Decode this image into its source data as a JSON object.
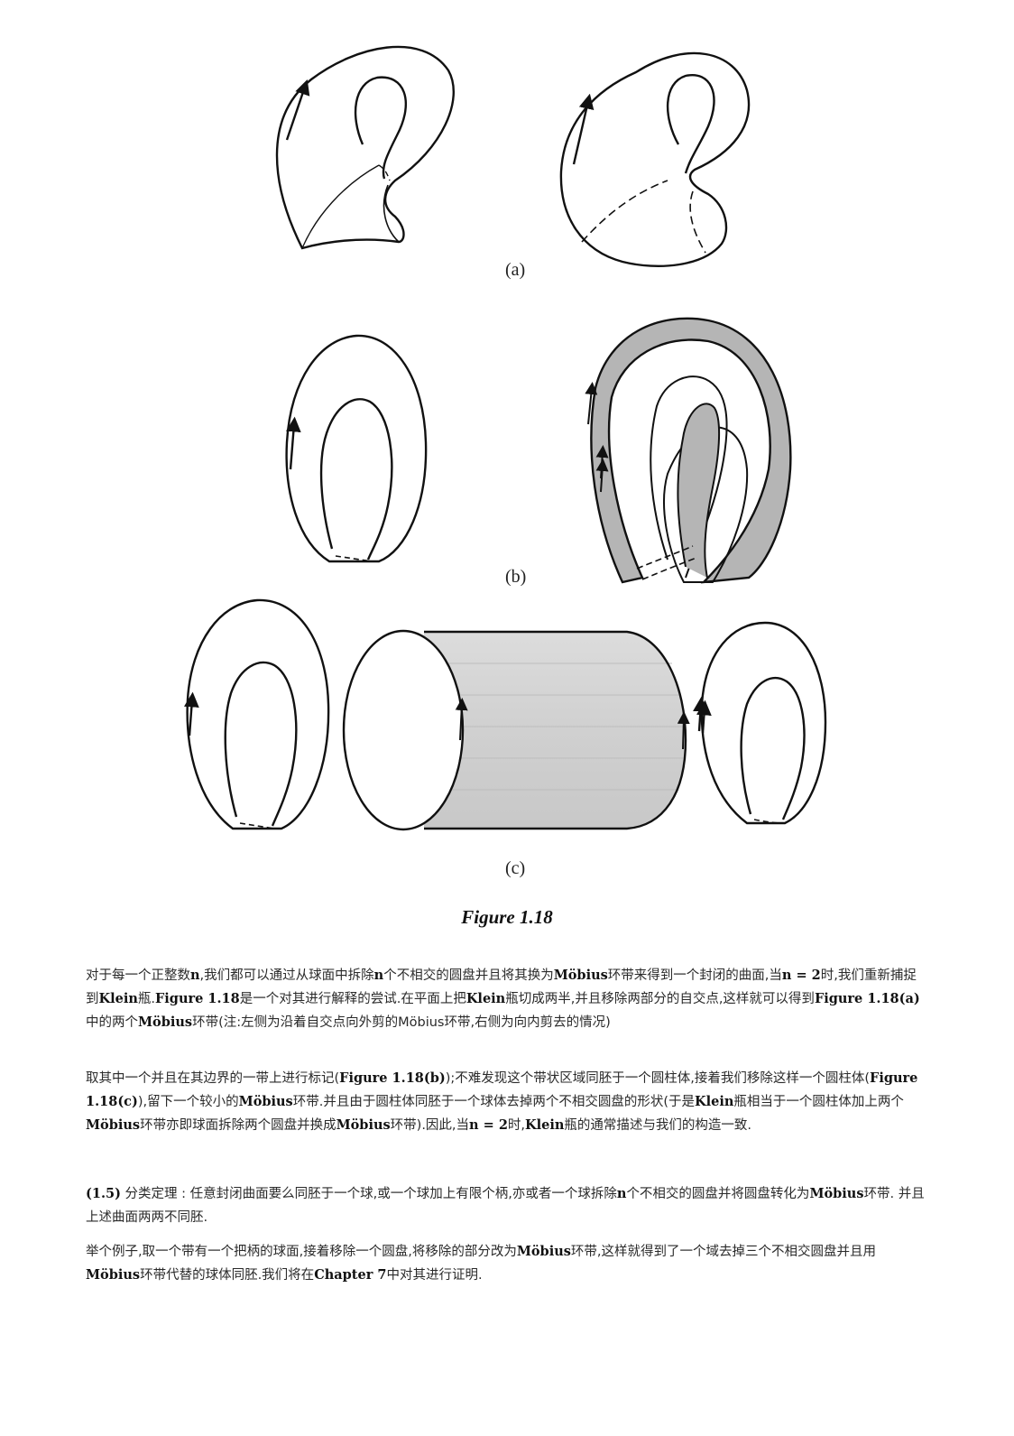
{
  "figure": {
    "labels": {
      "a": "(a)",
      "b": "(b)",
      "c": "(c)"
    },
    "caption": "Figure 1.18"
  },
  "paragraphs": {
    "p1": [
      "对于每一个正整数",
      "n",
      ",我们都可以通过从球面中拆除",
      "n",
      "个不相交的圆盘并且将其换为",
      "Möbius",
      "环带来得到一个封闭的曲面,当",
      "n = 2",
      "时,我们重新捕捉到",
      "Klein",
      "瓶.",
      "Figure 1.18",
      "是一个对其进行解释的尝试.在平面上把",
      "Klein",
      "瓶切成两半,并且移除两部分的自交点,这样就可以得到",
      "Figure 1.18(a)",
      "中的两个",
      "Möbius",
      "环带(注:左侧为沿着自交点向外剪的",
      "Möbius",
      "环带,右侧为向内剪去的情况)"
    ],
    "p2": [
      "取其中一个并且在其边界的一带上进行标记(",
      "Figure 1.18(b)",
      ");不难发现这个带状区域同胚于一个圆柱体,接着我们移除这样一个圆柱体(",
      "Figure 1.18(c)",
      "),留下一个较小的",
      "Möbius",
      "环带.并且由于圆柱体同胚于一个球体去掉两个不相交圆盘的形状(于是",
      "Klein",
      "瓶相当于一个圆柱体加上两个",
      "Möbius",
      "环带亦即球面拆除两个圆盘并换成",
      "Möbius",
      "环带).因此,当",
      "n = 2",
      "时,",
      "Klein",
      "瓶的通常描述与我们的构造一致."
    ],
    "p3": [
      "(1.5)",
      " 分类定理 : 任意封闭曲面要么同胚于一个球,或一个球加上有限个柄,亦或者一个球拆除",
      "n",
      "个不相交的圆盘并将圆盘转化为",
      "Möbius",
      "环带. 并且上述曲面两两不同胚."
    ],
    "p4": [
      "举个例子,取一个带有一个把柄的球面,接着移除一个圆盘,将移除的部分改为",
      "Möbius",
      "环带,这样就得到了一个域去掉三个不相交圆盘并且用",
      "Möbius",
      "环带代替的球体同胚.我们将在",
      "Chapter 7",
      "中对其进行证明."
    ]
  }
}
